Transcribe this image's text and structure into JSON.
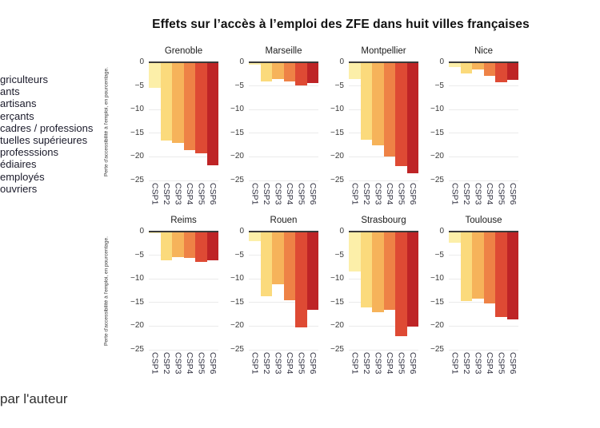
{
  "title": "Effets sur l’accès à l’emploi des ZFE dans huit villes françaises",
  "credit": "par l'auteur",
  "legend_fragments": [
    "griculteurs",
    "ants",
    "artisans",
    "erçants",
    "cadres / professions",
    "tuelles supérieures",
    "professsions",
    "édiaires",
    "employés",
    "ouvriers"
  ],
  "chart_data": {
    "type": "bar",
    "layout": "2 rows x 4 columns of small multiples",
    "categories": [
      "CSP1",
      "CSP2",
      "CSP3",
      "CSP4",
      "CSP5",
      "CSP6"
    ],
    "ylabel": "Perte d'accessibilité à l'emploi, en pourcentage.",
    "xlabel": "",
    "ylim": [
      -25,
      0
    ],
    "yticks": [
      0,
      -5,
      -10,
      -15,
      -20,
      -25
    ],
    "grid": true,
    "palette": [
      "#FCEFA9",
      "#FBDA7C",
      "#F6B35A",
      "#EE8246",
      "#DE4A34",
      "#BE2426"
    ],
    "cities": [
      {
        "name": "Grenoble",
        "values": [
          -5.4,
          -16.5,
          -17.0,
          -18.5,
          -19.2,
          -21.8
        ]
      },
      {
        "name": "Marseille",
        "values": [
          -0.5,
          -4.1,
          -3.6,
          -4.0,
          -4.9,
          -4.4
        ]
      },
      {
        "name": "Montpellier",
        "values": [
          -3.6,
          -16.4,
          -17.6,
          -20.0,
          -22.0,
          -23.4
        ]
      },
      {
        "name": "Nice",
        "values": [
          -1.0,
          -2.4,
          -1.6,
          -2.8,
          -4.3,
          -3.8
        ]
      },
      {
        "name": "Reims",
        "values": [
          -0.3,
          -6.0,
          -5.4,
          -5.6,
          -6.5,
          -6.1
        ]
      },
      {
        "name": "Rouen",
        "values": [
          -2.0,
          -13.6,
          -11.2,
          -14.5,
          -20.3,
          -16.6
        ]
      },
      {
        "name": "Strasbourg",
        "values": [
          -8.5,
          -16.1,
          -17.0,
          -16.6,
          -22.1,
          -20.1
        ]
      },
      {
        "name": "Toulouse",
        "values": [
          -2.3,
          -14.7,
          -14.2,
          -15.2,
          -18.0,
          -18.6
        ]
      }
    ],
    "colors": {
      "zero_line": "#3a3a3a",
      "gridline": "#ebebeb",
      "tick_text": "#3a3a3a",
      "title_text": "#111111"
    }
  }
}
